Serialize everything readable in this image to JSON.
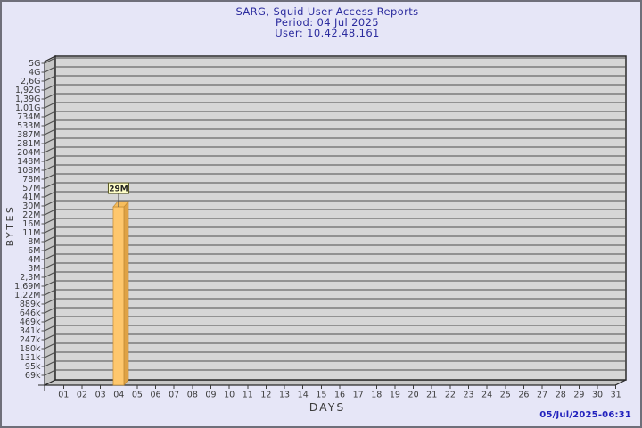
{
  "header": {
    "title": "SARG, Squid User Access Reports",
    "period": "Period: 04 Jul 2025",
    "user": "User: 10.42.48.161"
  },
  "footer": {
    "generated": "05/Jul/2025-06:31"
  },
  "colors": {
    "background": "#e6e6f7",
    "frame_border": "#6f6f7a",
    "plot_fill": "#d6d6d6",
    "wall_fill": "#c6c6c6",
    "grid_line": "#4d4d4d",
    "axis_line": "#2a2a2a",
    "title_text": "#2b2b9e",
    "tick_text": "#3c3c3c",
    "timestamp_text": "#2121bd",
    "bar_front": "#fec76d",
    "bar_side": "#dfa245",
    "bar_top": "#f7bd5c",
    "bar_stroke": "#c18a33",
    "value_box_fill": "#ffffc8",
    "value_box_border": "#55551f",
    "value_text": "#222222"
  },
  "chart_data": {
    "type": "bar",
    "title": "SARG, Squid User Access Reports",
    "subtitle": "Period: 04 Jul 2025",
    "user": "User: 10.42.48.161",
    "xlabel": "DAYS",
    "ylabel": "BYTES",
    "yscale": "log",
    "ylim_bytes": [
      69000,
      5000000000
    ],
    "grid": true,
    "x_categories": [
      "01",
      "02",
      "03",
      "04",
      "05",
      "06",
      "07",
      "08",
      "09",
      "10",
      "11",
      "12",
      "13",
      "14",
      "15",
      "16",
      "17",
      "18",
      "19",
      "20",
      "21",
      "22",
      "23",
      "24",
      "25",
      "26",
      "27",
      "28",
      "29",
      "30",
      "31"
    ],
    "y_tick_labels": [
      "5G",
      "4G",
      "2,6G",
      "1,92G",
      "1,39G",
      "1,01G",
      "734M",
      "533M",
      "387M",
      "281M",
      "204M",
      "148M",
      "108M",
      "78M",
      "57M",
      "41M",
      "30M",
      "22M",
      "16M",
      "11M",
      "8M",
      "6M",
      "4M",
      "3M",
      "2,3M",
      "1,69M",
      "1,22M",
      "889k",
      "646k",
      "469k",
      "341k",
      "247k",
      "180k",
      "131k",
      "95k",
      "69k"
    ],
    "series": [
      {
        "name": "bytes-per-day",
        "points": [
          {
            "x": "04",
            "value_bytes": 29000000,
            "label": "29M"
          }
        ]
      }
    ]
  }
}
